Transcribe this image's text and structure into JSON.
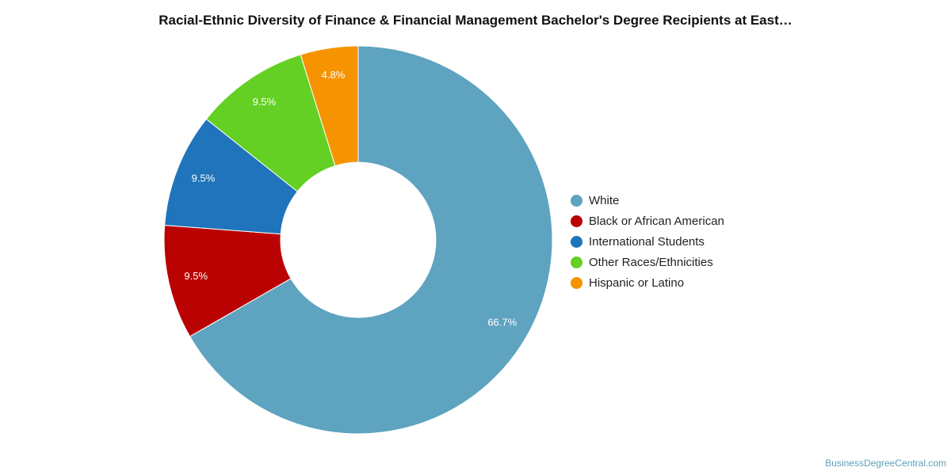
{
  "chart_data": {
    "type": "pie",
    "variant": "donut",
    "title": "Racial-Ethnic Diversity of Finance & Financial Management Bachelor's Degree Recipients at East…",
    "slices": [
      {
        "name": "White",
        "value": 66.7,
        "label": "66.7%",
        "color": "#5ea3bf"
      },
      {
        "name": "Black or African American",
        "value": 9.5,
        "label": "9.5%",
        "color": "#bb0202"
      },
      {
        "name": "International Students",
        "value": 9.5,
        "label": "9.5%",
        "color": "#1f74bb"
      },
      {
        "name": "Other Races/Ethnicities",
        "value": 9.5,
        "label": "9.5%",
        "color": "#63d023"
      },
      {
        "name": "Hispanic or Latino",
        "value": 4.8,
        "label": "4.8%",
        "color": "#f59400"
      }
    ],
    "legend_position": "right"
  },
  "credit": "BusinessDegreeCentral.com"
}
